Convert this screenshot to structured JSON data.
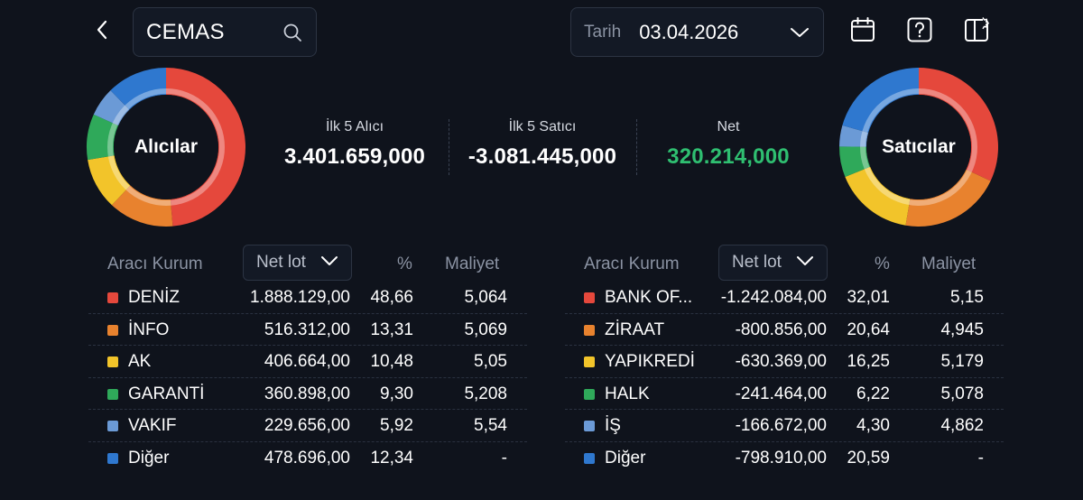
{
  "header": {
    "search_value": "CEMAS",
    "date_label": "Tarih",
    "date_value": "03.04.2026"
  },
  "icons": {
    "back": "back-icon",
    "search": "search-icon",
    "date_dropdown": "chevron-down-icon",
    "calendar": "calendar-icon",
    "help": "help-icon",
    "layout": "layout-icon"
  },
  "colors": {
    "red": "#e5483c",
    "orange": "#e8822e",
    "yellow": "#f2c42a",
    "green": "#2fa95a",
    "light_blue": "#6b9ad6",
    "blue": "#2f78cf",
    "net_positive": "#2fbf71"
  },
  "buyers_chart": {
    "label": "Alıcılar",
    "segments": [
      {
        "name": "DENİZ",
        "percent": 48.66,
        "color": "#e5483c"
      },
      {
        "name": "İNFO",
        "percent": 13.31,
        "color": "#e8822e"
      },
      {
        "name": "AK",
        "percent": 10.48,
        "color": "#f2c42a"
      },
      {
        "name": "GARANTİ",
        "percent": 9.3,
        "color": "#2fa95a"
      },
      {
        "name": "VAKIF",
        "percent": 5.92,
        "color": "#6b9ad6"
      },
      {
        "name": "Diğer",
        "percent": 12.34,
        "color": "#2f78cf"
      }
    ]
  },
  "sellers_chart": {
    "label": "Satıcılar",
    "segments": [
      {
        "name": "BANK OF...",
        "percent": 32.01,
        "color": "#e5483c"
      },
      {
        "name": "ZİRAAT",
        "percent": 20.64,
        "color": "#e8822e"
      },
      {
        "name": "YAPIKREDİ",
        "percent": 16.25,
        "color": "#f2c42a"
      },
      {
        "name": "HALK",
        "percent": 6.22,
        "color": "#2fa95a"
      },
      {
        "name": "İŞ",
        "percent": 4.3,
        "color": "#6b9ad6"
      },
      {
        "name": "Diğer",
        "percent": 20.59,
        "color": "#2f78cf"
      }
    ]
  },
  "summary": {
    "buyers_label": "İlk 5 Alıcı",
    "buyers_value": "3.401.659,000",
    "sellers_label": "İlk 5 Satıcı",
    "sellers_value": "-3.081.445,000",
    "net_label": "Net",
    "net_value": "320.214,000"
  },
  "buyers_table": {
    "col_broker": "Aracı Kurum",
    "col_net": "Net lot",
    "col_pct": "%",
    "col_cost": "Maliyet",
    "rows": [
      {
        "name": "DENİZ",
        "net": "1.888.129,00",
        "pct": "48,66",
        "cost": "5,064",
        "color": "#e5483c"
      },
      {
        "name": "İNFO",
        "net": "516.312,00",
        "pct": "13,31",
        "cost": "5,069",
        "color": "#e8822e"
      },
      {
        "name": "AK",
        "net": "406.664,00",
        "pct": "10,48",
        "cost": "5,05",
        "color": "#f2c42a"
      },
      {
        "name": "GARANTİ",
        "net": "360.898,00",
        "pct": "9,30",
        "cost": "5,208",
        "color": "#2fa95a"
      },
      {
        "name": "VAKIF",
        "net": "229.656,00",
        "pct": "5,92",
        "cost": "5,54",
        "color": "#6b9ad6"
      },
      {
        "name": "Diğer",
        "net": "478.696,00",
        "pct": "12,34",
        "cost": "-",
        "color": "#2f78cf"
      }
    ]
  },
  "sellers_table": {
    "col_broker": "Aracı Kurum",
    "col_net": "Net lot",
    "col_pct": "%",
    "col_cost": "Maliyet",
    "rows": [
      {
        "name": "BANK OF...",
        "net": "-1.242.084,00",
        "pct": "32,01",
        "cost": "5,15",
        "color": "#e5483c"
      },
      {
        "name": "ZİRAAT",
        "net": "-800.856,00",
        "pct": "20,64",
        "cost": "4,945",
        "color": "#e8822e"
      },
      {
        "name": "YAPIKREDİ",
        "net": "-630.369,00",
        "pct": "16,25",
        "cost": "5,179",
        "color": "#f2c42a"
      },
      {
        "name": "HALK",
        "net": "-241.464,00",
        "pct": "6,22",
        "cost": "5,078",
        "color": "#2fa95a"
      },
      {
        "name": "İŞ",
        "net": "-166.672,00",
        "pct": "4,30",
        "cost": "4,862",
        "color": "#6b9ad6"
      },
      {
        "name": "Diğer",
        "net": "-798.910,00",
        "pct": "20,59",
        "cost": "-",
        "color": "#2f78cf"
      }
    ]
  }
}
